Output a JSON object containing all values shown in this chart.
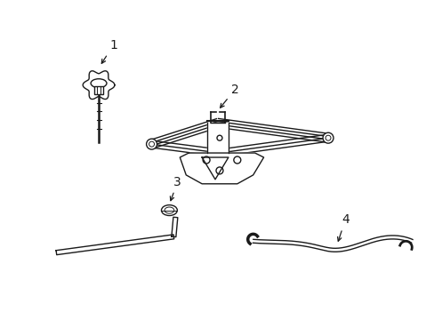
{
  "background_color": "#ffffff",
  "line_color": "#1a1a1a",
  "fig_width": 4.89,
  "fig_height": 3.6,
  "dpi": 100,
  "label_1": "1",
  "label_2": "2",
  "label_3": "3",
  "label_4": "4",
  "label_fontsize": 10
}
